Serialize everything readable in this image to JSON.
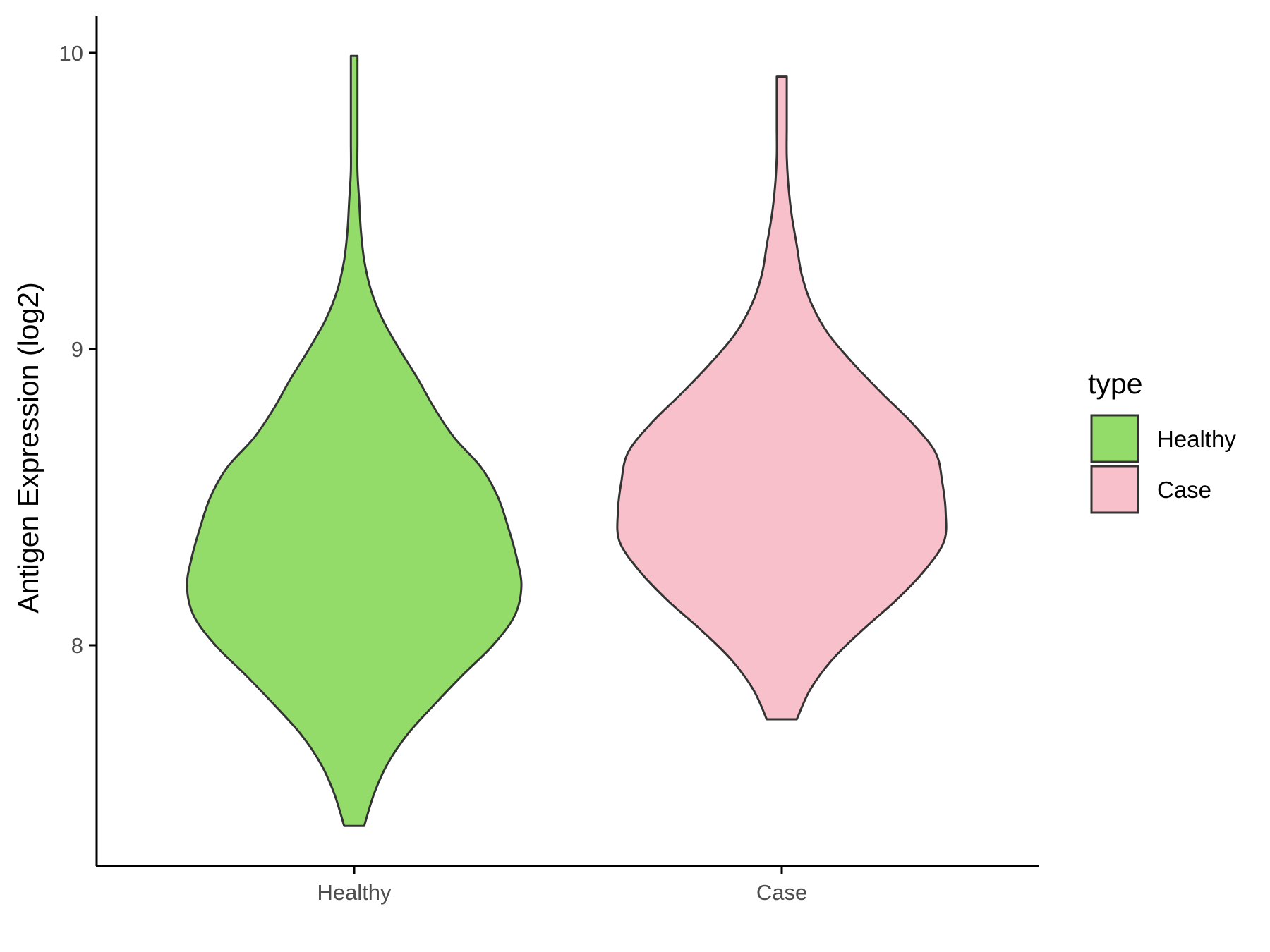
{
  "chart_data": {
    "type": "violin",
    "ylabel": "Antigen Expression (log2)",
    "xlabel": "",
    "categories": [
      "Healthy",
      "Case"
    ],
    "y_ticks": [
      8,
      9,
      10
    ],
    "ylim": [
      7.27,
      10.17
    ],
    "grid": false,
    "legend": {
      "title": "type",
      "placement": "right",
      "entries": [
        {
          "label": "Healthy",
          "color": "#93DC6A"
        },
        {
          "label": "Case",
          "color": "#F8C0CB"
        }
      ]
    },
    "series": [
      {
        "category": "Healthy",
        "color": "#93DC6A",
        "y_min": 7.39,
        "y_max": 9.99,
        "density_profile": [
          [
            7.39,
            0.06
          ],
          [
            7.5,
            0.12
          ],
          [
            7.6,
            0.2
          ],
          [
            7.7,
            0.32
          ],
          [
            7.8,
            0.48
          ],
          [
            7.9,
            0.65
          ],
          [
            8.0,
            0.83
          ],
          [
            8.1,
            0.96
          ],
          [
            8.2,
            1.0
          ],
          [
            8.3,
            0.97
          ],
          [
            8.4,
            0.92
          ],
          [
            8.5,
            0.86
          ],
          [
            8.6,
            0.76
          ],
          [
            8.7,
            0.6
          ],
          [
            8.8,
            0.48
          ],
          [
            8.9,
            0.38
          ],
          [
            9.0,
            0.27
          ],
          [
            9.1,
            0.17
          ],
          [
            9.2,
            0.1
          ],
          [
            9.3,
            0.06
          ],
          [
            9.4,
            0.04
          ],
          [
            9.5,
            0.03
          ],
          [
            9.6,
            0.02
          ],
          [
            9.7,
            0.02
          ],
          [
            9.8,
            0.02
          ],
          [
            9.9,
            0.02
          ],
          [
            9.99,
            0.02
          ]
        ]
      },
      {
        "category": "Case",
        "color": "#F8C0CB",
        "y_min": 7.75,
        "y_max": 9.92,
        "density_profile": [
          [
            7.75,
            0.09
          ],
          [
            7.85,
            0.17
          ],
          [
            7.95,
            0.3
          ],
          [
            8.05,
            0.48
          ],
          [
            8.15,
            0.68
          ],
          [
            8.25,
            0.85
          ],
          [
            8.35,
            0.97
          ],
          [
            8.45,
            0.98
          ],
          [
            8.55,
            0.96
          ],
          [
            8.65,
            0.92
          ],
          [
            8.75,
            0.78
          ],
          [
            8.85,
            0.6
          ],
          [
            8.95,
            0.43
          ],
          [
            9.05,
            0.28
          ],
          [
            9.15,
            0.18
          ],
          [
            9.25,
            0.12
          ],
          [
            9.35,
            0.09
          ],
          [
            9.45,
            0.06
          ],
          [
            9.55,
            0.04
          ],
          [
            9.65,
            0.03
          ],
          [
            9.75,
            0.03
          ],
          [
            9.85,
            0.03
          ],
          [
            9.92,
            0.03
          ]
        ]
      }
    ]
  }
}
